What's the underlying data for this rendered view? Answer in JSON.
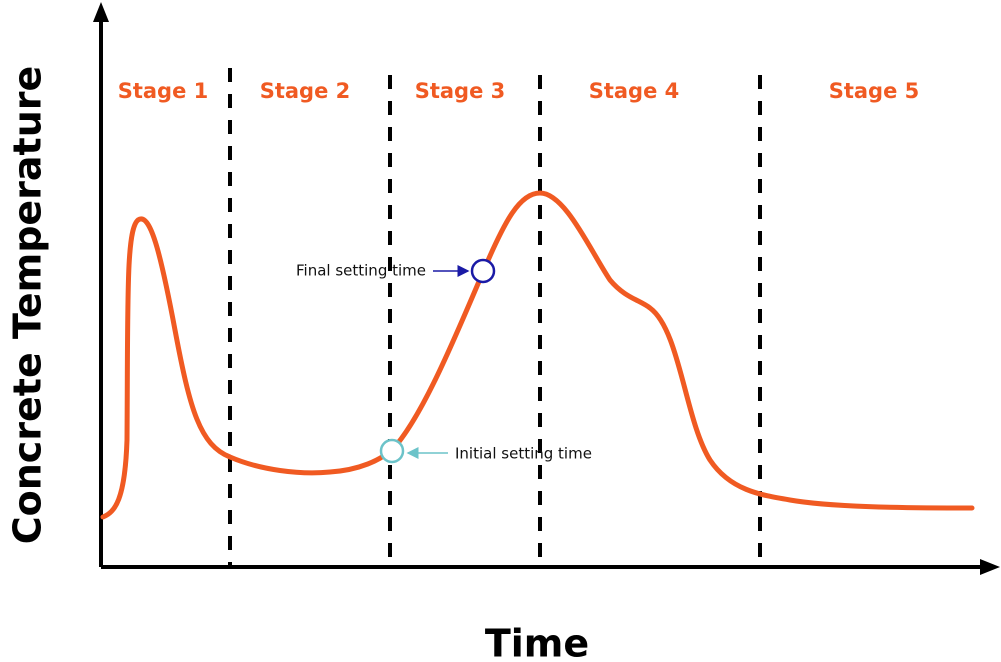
{
  "y_axis_label": "Concrete Temperature",
  "x_axis_label": "Time",
  "stages": [
    "Stage 1",
    "Stage 2",
    "Stage 3",
    "Stage 4",
    "Stage 5"
  ],
  "annotations": {
    "final_setting_time": "Final setting time",
    "initial_setting_time": "Initial setting time"
  }
}
